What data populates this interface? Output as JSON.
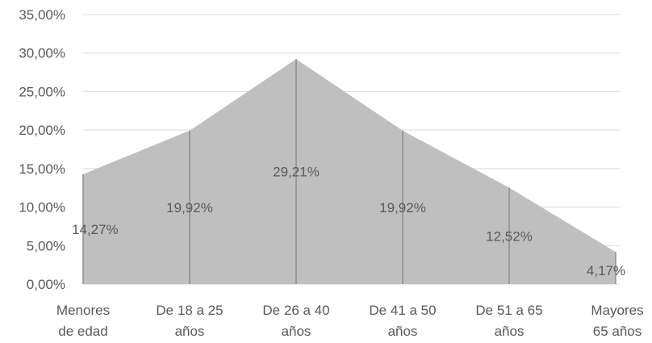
{
  "chart_data": {
    "type": "area",
    "categories": [
      [
        "Menores",
        "de edad"
      ],
      [
        "De 18 a 25",
        "años"
      ],
      [
        "De 26 a 40",
        "años"
      ],
      [
        "De 41 a 50",
        "años"
      ],
      [
        "De 51 a 65",
        "años"
      ],
      [
        "Mayores",
        "65 años"
      ]
    ],
    "values": [
      14.27,
      19.92,
      29.21,
      19.92,
      12.52,
      4.17
    ],
    "data_labels": [
      "14,27%",
      "19,92%",
      "29,21%",
      "19,92%",
      "12,52%",
      "4,17%"
    ],
    "y_ticks": [
      "0,00%",
      "5,00%",
      "10,00%",
      "15,00%",
      "20,00%",
      "25,00%",
      "30,00%",
      "35,00%"
    ],
    "ylim": [
      0,
      35
    ],
    "grid": true,
    "legend": "none",
    "colors": {
      "area": "#bfbfbf",
      "drop_lines": "#8c8c8c",
      "grid": "#d9d9d9"
    }
  }
}
